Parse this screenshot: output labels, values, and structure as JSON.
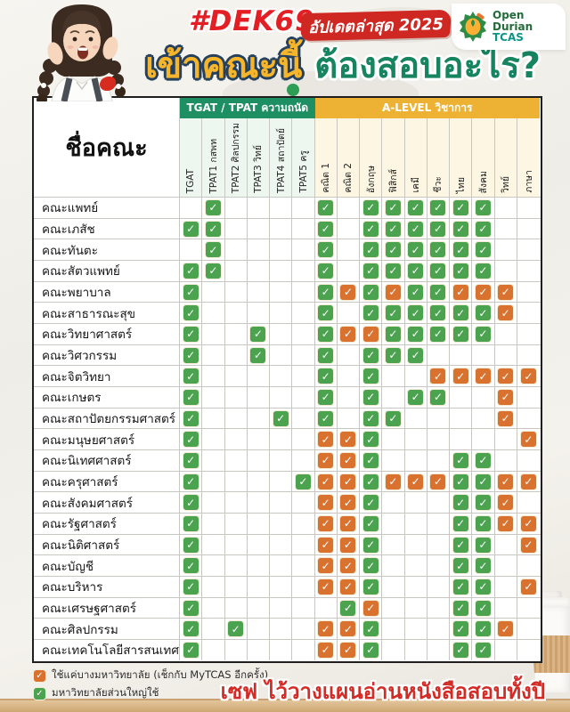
{
  "header": {
    "hashtag": "#DEK69",
    "badge": "อัปเดตล่าสุด 2025",
    "title_yellow": "เข้าคณะนี้",
    "title_green": "ต้องสอบอะไร?",
    "logo": {
      "line1": "Open",
      "line2": "Durian",
      "line3": "TCAS"
    }
  },
  "chart_data": {
    "type": "table",
    "title": "เข้าคณะนี้ ต้องสอบอะไร?",
    "row_header": "ชื่อคณะ",
    "column_groups": [
      {
        "label": "TGAT / TPAT ความถนัด",
        "span": 6,
        "color": "#1e8e63"
      },
      {
        "label": "A-LEVEL วิชาการ",
        "span": 10,
        "color": "#edb233"
      }
    ],
    "columns": [
      "TGAT",
      "TPAT1 กสพท",
      "TPAT2 ศิลปกรรม",
      "TPAT3 วิทย์",
      "TPAT4 สถาปัตย์",
      "TPAT5 ครู",
      "คณิต 1",
      "คณิต 2",
      "อังกฤษ",
      "ฟิสิกส์",
      "เคมี",
      "ชีวะ",
      "ไทย",
      "สังคม",
      "วิทย์",
      "ภาษา"
    ],
    "check_legend": {
      "G": "มหาวิทยาลัยส่วนใหญ่ใช้",
      "O": "ใช้แค่บางมหาวิทยาลัย (เช็กกับ MyTCAS อีกครั้ง)"
    },
    "rows": [
      {
        "name": "คณะแพทย์",
        "checks": [
          "",
          "G",
          "",
          "",
          "",
          "",
          "G",
          "",
          "G",
          "G",
          "G",
          "G",
          "G",
          "G",
          "",
          ""
        ]
      },
      {
        "name": "คณะเภสัช",
        "checks": [
          "G",
          "G",
          "",
          "",
          "",
          "",
          "G",
          "",
          "G",
          "G",
          "G",
          "G",
          "G",
          "G",
          "",
          ""
        ]
      },
      {
        "name": "คณะทันตะ",
        "checks": [
          "",
          "G",
          "",
          "",
          "",
          "",
          "G",
          "",
          "G",
          "G",
          "G",
          "G",
          "G",
          "G",
          "",
          ""
        ]
      },
      {
        "name": "คณะสัตวแพทย์",
        "checks": [
          "G",
          "G",
          "",
          "",
          "",
          "",
          "G",
          "",
          "G",
          "G",
          "G",
          "G",
          "G",
          "G",
          "",
          ""
        ]
      },
      {
        "name": "คณะพยาบาล",
        "checks": [
          "G",
          "",
          "",
          "",
          "",
          "",
          "G",
          "O",
          "G",
          "O",
          "G",
          "G",
          "O",
          "O",
          "O",
          ""
        ]
      },
      {
        "name": "คณะสาธารณะสุข",
        "checks": [
          "G",
          "",
          "",
          "",
          "",
          "",
          "G",
          "",
          "G",
          "G",
          "G",
          "G",
          "G",
          "G",
          "O",
          ""
        ]
      },
      {
        "name": "คณะวิทยาศาสตร์",
        "checks": [
          "G",
          "",
          "",
          "G",
          "",
          "",
          "G",
          "O",
          "O",
          "G",
          "G",
          "G",
          "G",
          "G",
          "",
          ""
        ]
      },
      {
        "name": "คณะวิศวกรรม",
        "checks": [
          "G",
          "",
          "",
          "G",
          "",
          "",
          "G",
          "",
          "G",
          "G",
          "G",
          "",
          "",
          "",
          "",
          ""
        ]
      },
      {
        "name": "คณะจิตวิทยา",
        "checks": [
          "G",
          "",
          "",
          "",
          "",
          "",
          "G",
          "",
          "G",
          "",
          "",
          "O",
          "O",
          "O",
          "O",
          "O"
        ]
      },
      {
        "name": "คณะเกษตร",
        "checks": [
          "G",
          "",
          "",
          "",
          "",
          "",
          "G",
          "",
          "G",
          "",
          "G",
          "G",
          "",
          "",
          "O",
          ""
        ]
      },
      {
        "name": "คณะสถาปัตยกรรมศาสตร์",
        "checks": [
          "G",
          "",
          "",
          "",
          "G",
          "",
          "G",
          "",
          "G",
          "G",
          "",
          "",
          "",
          "",
          "O",
          ""
        ]
      },
      {
        "name": "คณะมนุษยศาสตร์",
        "checks": [
          "G",
          "",
          "",
          "",
          "",
          "",
          "O",
          "O",
          "G",
          "",
          "",
          "",
          "",
          "",
          "",
          "O"
        ]
      },
      {
        "name": "คณะนิเทศศาสตร์",
        "checks": [
          "G",
          "",
          "",
          "",
          "",
          "",
          "O",
          "O",
          "G",
          "",
          "",
          "",
          "G",
          "G",
          "",
          ""
        ]
      },
      {
        "name": "คณะครุศาสตร์",
        "checks": [
          "G",
          "",
          "",
          "",
          "",
          "G",
          "O",
          "O",
          "G",
          "O",
          "O",
          "O",
          "G",
          "G",
          "O",
          "O"
        ]
      },
      {
        "name": "คณะสังคมศาสตร์",
        "checks": [
          "G",
          "",
          "",
          "",
          "",
          "",
          "O",
          "O",
          "G",
          "",
          "",
          "",
          "G",
          "G",
          "O",
          ""
        ]
      },
      {
        "name": "คณะรัฐศาสตร์",
        "checks": [
          "G",
          "",
          "",
          "",
          "",
          "",
          "O",
          "O",
          "G",
          "",
          "",
          "",
          "G",
          "G",
          "O",
          "O"
        ]
      },
      {
        "name": "คณะนิติศาสตร์",
        "checks": [
          "G",
          "",
          "",
          "",
          "",
          "",
          "O",
          "O",
          "G",
          "",
          "",
          "",
          "G",
          "G",
          "",
          "O"
        ]
      },
      {
        "name": "คณะบัญชี",
        "checks": [
          "G",
          "",
          "",
          "",
          "",
          "",
          "O",
          "O",
          "G",
          "",
          "",
          "",
          "G",
          "G",
          "",
          ""
        ]
      },
      {
        "name": "คณะบริหาร",
        "checks": [
          "G",
          "",
          "",
          "",
          "",
          "",
          "O",
          "O",
          "G",
          "",
          "",
          "",
          "G",
          "G",
          "",
          "O"
        ]
      },
      {
        "name": "คณะเศรษฐศาสตร์",
        "checks": [
          "G",
          "",
          "",
          "",
          "",
          "",
          "",
          "G",
          "O",
          "",
          "",
          "",
          "G",
          "G",
          "",
          ""
        ]
      },
      {
        "name": "คณะศิลปกรรม",
        "checks": [
          "G",
          "",
          "G",
          "",
          "",
          "",
          "O",
          "O",
          "G",
          "",
          "",
          "",
          "G",
          "G",
          "O",
          ""
        ]
      },
      {
        "name": "คณะเทคโนโลยีสารสนเทศ",
        "checks": [
          "G",
          "",
          "",
          "",
          "",
          "",
          "O",
          "O",
          "G",
          "",
          "",
          "",
          "G",
          "G",
          "",
          ""
        ]
      }
    ]
  },
  "legend": [
    {
      "type": "O",
      "label": "ใช้แค่บางมหาวิทยาลัย (เช็กกับ MyTCAS อีกครั้ง)"
    },
    {
      "type": "G",
      "label": "มหาวิทยาลัยส่วนใหญ่ใช้"
    }
  ],
  "footer": {
    "save_text": "เซฟ ไว้วางแผนอ่านหนังสือสอบทั้งปี"
  },
  "colors": {
    "check_green": "#4ba24f",
    "check_orange": "#d9712f",
    "band_green": "#1e8e63",
    "band_yellow": "#edb233",
    "accent_red": "#d32b25",
    "title_yellow": "#f6b52a",
    "title_green": "#15845f"
  }
}
